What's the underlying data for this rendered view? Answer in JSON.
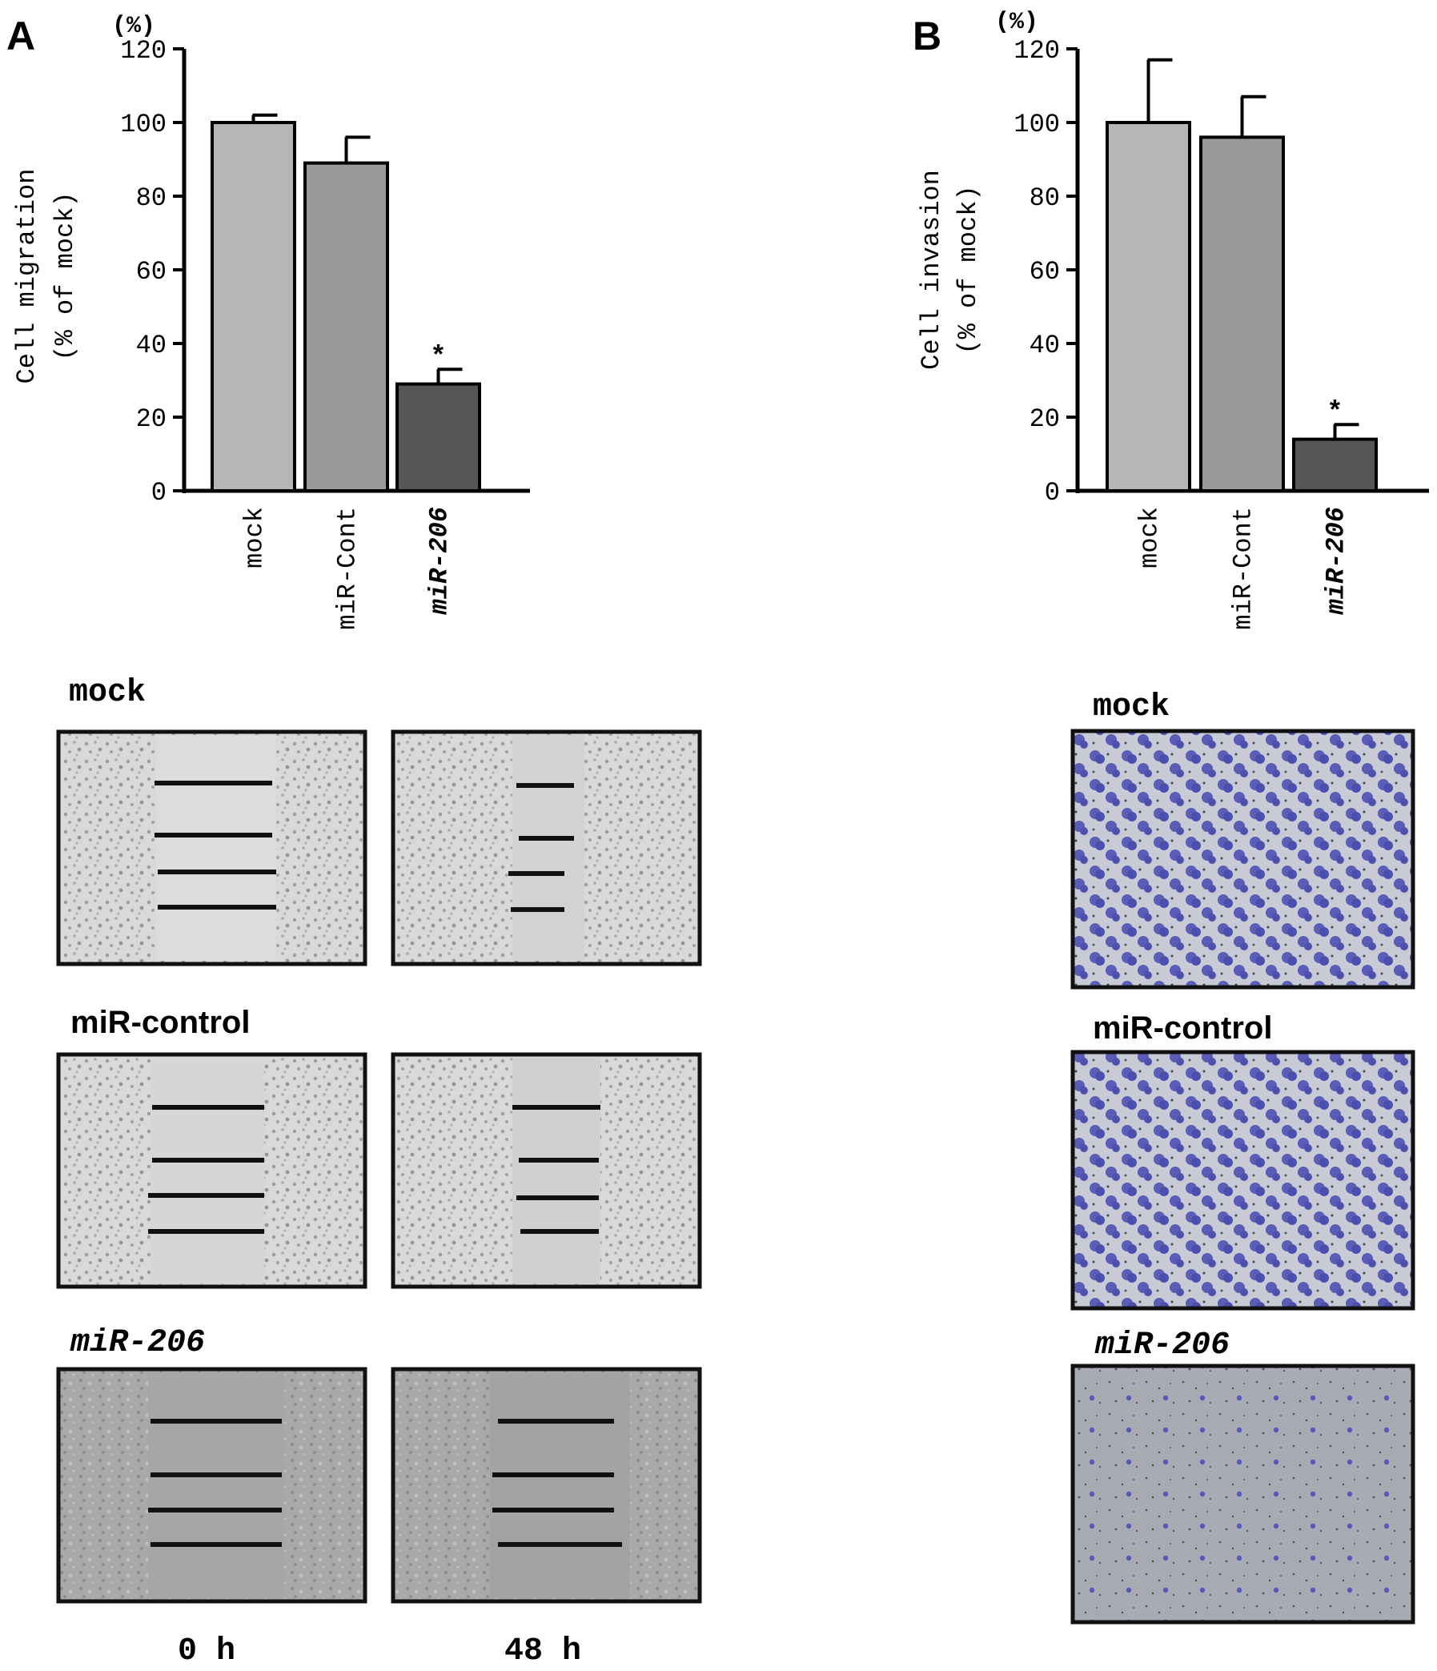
{
  "colors": {
    "mock": "#b6b6b6",
    "miR_cont": "#9a9a9a",
    "miR_206": "#565656",
    "invasion_stain": "#4a4fb0",
    "micro_bg_light": "#d8d8d8",
    "micro_bg_dark": "#a9a9a9",
    "invasion_bg": "#c9ccd4"
  },
  "panel_labels": {
    "a": "A",
    "b": "B"
  },
  "chart_data": [
    {
      "type": "bar",
      "panel": "A",
      "unit_label": "(%)",
      "ylabel_line1": "Cell migration",
      "ylabel_line2": "(% of mock)",
      "categories": [
        "mock",
        "miR-Cont",
        "miR-206"
      ],
      "values": [
        100,
        89,
        29
      ],
      "errors": [
        2,
        7,
        4
      ],
      "significance": [
        "",
        "",
        "*"
      ],
      "ylim": [
        0,
        120
      ],
      "yticks": [
        0,
        20,
        40,
        60,
        80,
        100,
        120
      ],
      "grid": false
    },
    {
      "type": "bar",
      "panel": "B",
      "unit_label": "(%)",
      "ylabel_line1": "Cell invasion",
      "ylabel_line2": "(% of mock)",
      "categories": [
        "mock",
        "miR-Cont",
        "miR-206"
      ],
      "values": [
        100,
        96,
        14
      ],
      "errors": [
        17,
        11,
        4
      ],
      "significance": [
        "",
        "",
        "*"
      ],
      "ylim": [
        0,
        120
      ],
      "yticks": [
        0,
        20,
        40,
        60,
        80,
        100,
        120
      ],
      "grid": false
    }
  ],
  "micrographs": {
    "migration_rows": [
      {
        "label": "mock"
      },
      {
        "label": "miR-control"
      },
      {
        "label": "miR-206"
      }
    ],
    "migration_columns": [
      "0 h",
      "48 h"
    ],
    "invasion_rows": [
      {
        "label": "mock"
      },
      {
        "label": "miR-control"
      },
      {
        "label": "miR-206"
      }
    ]
  }
}
